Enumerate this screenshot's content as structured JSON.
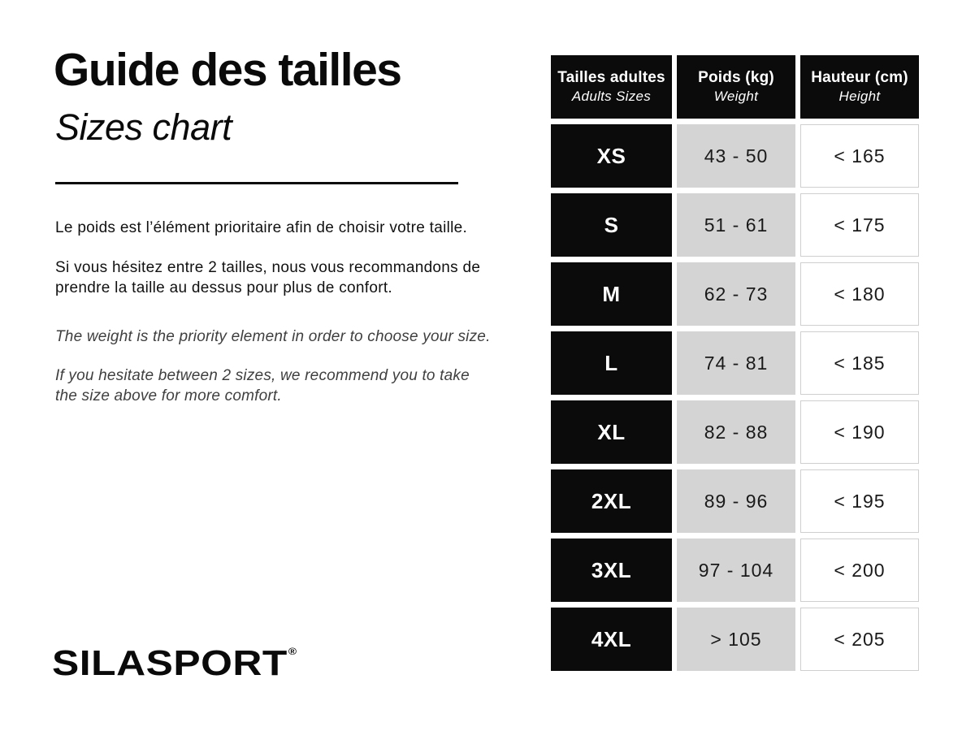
{
  "left": {
    "title": "Guide des tailles",
    "subtitle": "Sizes chart",
    "intro_fr_1": "Le poids est l’élément prioritaire afin de choisir votre taille.",
    "intro_fr_2": "Si vous hésitez entre 2 tailles, nous vous recommandons de prendre la taille au dessus pour plus de confort.",
    "intro_en_1": "The weight is the priority element in order to choose your size.",
    "intro_en_2": "If you hesitate between 2 sizes, we recommend you to take the size above for more comfort.",
    "logo_text": "SILASPORT",
    "logo_mark": "®"
  },
  "colors": {
    "cell_black": "#0b0b0b",
    "cell_gray": "#d4d4d4",
    "cell_white_border": "#cfcfcf",
    "english_text": "#3f3f3f"
  },
  "table": {
    "headers": [
      {
        "fr": "Tailles adultes",
        "en": "Adults Sizes"
      },
      {
        "fr": "Poids (kg)",
        "en": "Weight"
      },
      {
        "fr": "Hauteur (cm)",
        "en": "Height"
      }
    ],
    "rows": [
      {
        "size": "XS",
        "weight": "43 - 50",
        "height": "< 165"
      },
      {
        "size": "S",
        "weight": "51 - 61",
        "height": "< 175"
      },
      {
        "size": "M",
        "weight": "62 - 73",
        "height": "< 180"
      },
      {
        "size": "L",
        "weight": "74 - 81",
        "height": "< 185"
      },
      {
        "size": "XL",
        "weight": "82 - 88",
        "height": "< 190"
      },
      {
        "size": "2XL",
        "weight": "89 - 96",
        "height": "< 195"
      },
      {
        "size": "3XL",
        "weight": "97 - 104",
        "height": "< 200"
      },
      {
        "size": "4XL",
        "weight": "> 105",
        "height": "< 205"
      }
    ]
  }
}
